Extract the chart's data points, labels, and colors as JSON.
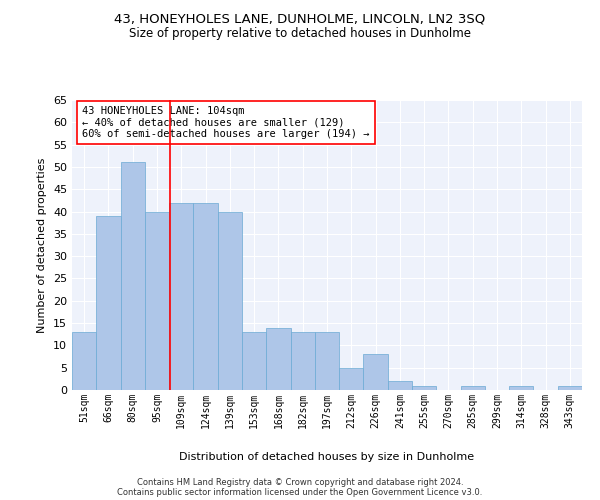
{
  "title": "43, HONEYHOLES LANE, DUNHOLME, LINCOLN, LN2 3SQ",
  "subtitle": "Size of property relative to detached houses in Dunholme",
  "xlabel": "Distribution of detached houses by size in Dunholme",
  "ylabel": "Number of detached properties",
  "categories": [
    "51sqm",
    "66sqm",
    "80sqm",
    "95sqm",
    "109sqm",
    "124sqm",
    "139sqm",
    "153sqm",
    "168sqm",
    "182sqm",
    "197sqm",
    "212sqm",
    "226sqm",
    "241sqm",
    "255sqm",
    "270sqm",
    "285sqm",
    "299sqm",
    "314sqm",
    "328sqm",
    "343sqm"
  ],
  "values": [
    13,
    39,
    51,
    40,
    42,
    42,
    40,
    13,
    14,
    13,
    13,
    5,
    8,
    2,
    1,
    0,
    1,
    0,
    1,
    0,
    1
  ],
  "bar_color": "#aec6e8",
  "bar_edge_color": "#6aaad4",
  "redline_x": 3.55,
  "annotation_text": "43 HONEYHOLES LANE: 104sqm\n← 40% of detached houses are smaller (129)\n60% of semi-detached houses are larger (194) →",
  "ylim": [
    0,
    65
  ],
  "yticks": [
    0,
    5,
    10,
    15,
    20,
    25,
    30,
    35,
    40,
    45,
    50,
    55,
    60,
    65
  ],
  "background_color": "#eef2fb",
  "grid_color": "#ffffff",
  "footer_line1": "Contains HM Land Registry data © Crown copyright and database right 2024.",
  "footer_line2": "Contains public sector information licensed under the Open Government Licence v3.0."
}
